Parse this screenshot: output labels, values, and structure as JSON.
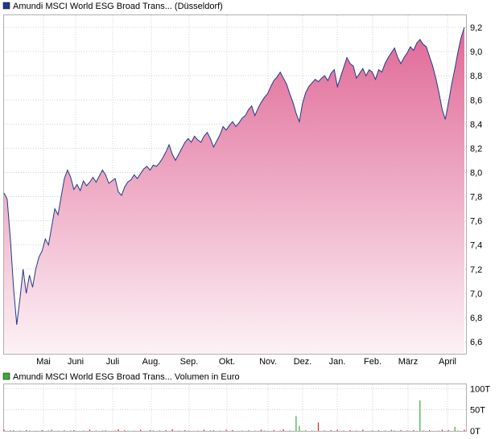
{
  "chart_data": [
    {
      "type": "area",
      "legend": "Amundi MSCI World ESG Broad Trans... (Düsseldorf)",
      "legend_color": "#1f3a8a",
      "line_color": "#1f3a8a",
      "fill_top_color": "#e06896",
      "fill_bottom_color": "#fdf2f6",
      "ylim": [
        6.5,
        9.3
      ],
      "yticks": [
        "6,6",
        "6,8",
        "7,0",
        "7,2",
        "7,4",
        "7,6",
        "7,8",
        "8,0",
        "8,2",
        "8,4",
        "8,6",
        "8,8",
        "9,0",
        "9,2"
      ],
      "ytick_values": [
        6.6,
        6.8,
        7.0,
        7.2,
        7.4,
        7.6,
        7.8,
        8.0,
        8.2,
        8.4,
        8.6,
        8.8,
        9.0,
        9.2
      ],
      "xticks": [
        "Mai",
        "Juni",
        "Juli",
        "Aug.",
        "Sep.",
        "Okt.",
        "Nov.",
        "Dez.",
        "Jan.",
        "Feb.",
        "März",
        "April"
      ],
      "grid": true,
      "series": [
        {
          "values": [
            7.83,
            7.78,
            7.45,
            7.05,
            6.74,
            6.95,
            7.2,
            7.0,
            7.15,
            7.05,
            7.2,
            7.3,
            7.35,
            7.45,
            7.4,
            7.55,
            7.7,
            7.65,
            7.8,
            7.95,
            8.02,
            7.96,
            7.86,
            7.9,
            7.85,
            7.93,
            7.89,
            7.92,
            7.96,
            7.92,
            7.97,
            8.02,
            7.98,
            7.91,
            7.93,
            7.95,
            7.84,
            7.81,
            7.88,
            7.92,
            7.94,
            7.98,
            7.95,
            7.99,
            8.03,
            8.05,
            8.02,
            8.06,
            8.05,
            8.08,
            8.12,
            8.17,
            8.23,
            8.15,
            8.1,
            8.15,
            8.2,
            8.25,
            8.28,
            8.25,
            8.3,
            8.27,
            8.25,
            8.3,
            8.33,
            8.28,
            8.21,
            8.26,
            8.31,
            8.38,
            8.35,
            8.39,
            8.42,
            8.38,
            8.41,
            8.45,
            8.47,
            8.52,
            8.55,
            8.47,
            8.53,
            8.58,
            8.62,
            8.65,
            8.71,
            8.76,
            8.79,
            8.83,
            8.78,
            8.73,
            8.65,
            8.58,
            8.49,
            8.42,
            8.57,
            8.66,
            8.71,
            8.74,
            8.77,
            8.75,
            8.78,
            8.8,
            8.76,
            8.82,
            8.85,
            8.71,
            8.79,
            8.87,
            8.95,
            8.9,
            8.88,
            8.78,
            8.82,
            8.86,
            8.8,
            8.85,
            8.83,
            8.77,
            8.85,
            8.83,
            8.9,
            8.95,
            8.99,
            9.03,
            8.95,
            8.9,
            8.95,
            8.99,
            9.04,
            9.01,
            9.07,
            9.1,
            9.06,
            9.04,
            8.96,
            8.88,
            8.78,
            8.66,
            8.52,
            8.44,
            8.58,
            8.73,
            8.86,
            9.0,
            9.12,
            9.2
          ]
        }
      ]
    },
    {
      "type": "bar",
      "legend": "Amundi MSCI World ESG Broad Trans... Volumen in Euro",
      "legend_color": "#3daa3d",
      "ylim": [
        0,
        110
      ],
      "yticks": [
        "0T",
        "50T",
        "100T"
      ],
      "ytick_values": [
        0,
        50,
        100
      ],
      "series": [
        {
          "values": [
            3,
            0,
            1,
            2,
            0,
            1,
            0,
            2,
            1,
            0,
            1,
            0,
            2,
            0,
            1,
            3,
            0,
            1,
            0,
            2,
            0,
            1,
            2,
            0,
            0,
            1,
            0,
            3,
            0,
            1,
            0,
            1,
            2,
            0,
            0,
            1,
            4,
            0,
            2,
            1,
            0,
            1,
            0,
            3,
            0,
            0,
            2,
            1,
            0,
            1,
            0,
            2,
            0,
            4,
            0,
            1,
            0,
            2,
            1,
            0,
            0,
            1,
            0,
            3,
            0,
            1,
            2,
            0,
            1,
            0,
            3,
            0,
            2,
            0,
            0,
            1,
            0,
            2,
            0,
            1,
            0,
            3,
            1,
            0,
            0,
            2,
            0,
            1,
            4,
            0,
            1,
            0,
            35,
            12,
            0,
            2,
            0,
            1,
            0,
            20,
            0,
            1,
            0,
            2,
            0,
            3,
            0,
            1,
            0,
            2,
            0,
            1,
            0,
            3,
            0,
            0,
            1,
            0,
            2,
            0,
            1,
            0,
            3,
            1,
            0,
            2,
            0,
            1,
            0,
            2,
            0,
            72,
            1,
            0,
            2,
            0,
            0,
            1,
            3,
            0,
            2,
            0,
            10,
            1,
            0,
            3
          ],
          "colors": [
            "#dd2222",
            "#3daa3d",
            "#dd2222",
            "#3daa3d",
            "#dd2222",
            "#3daa3d",
            "#3daa3d",
            "#dd2222",
            "#3daa3d",
            "#dd2222",
            "#3daa3d",
            "#dd2222",
            "#dd2222",
            "#3daa3d",
            "#dd2222",
            "#3daa3d",
            "#dd2222",
            "#3daa3d",
            "#dd2222",
            "#3daa3d",
            "#dd2222",
            "#3daa3d",
            "#dd2222",
            "#3daa3d",
            "#dd2222",
            "#3daa3d",
            "#dd2222",
            "#dd2222",
            "#3daa3d",
            "#dd2222",
            "#3daa3d",
            "#dd2222",
            "#3daa3d",
            "#dd2222",
            "#3daa3d",
            "#dd2222",
            "#dd2222",
            "#3daa3d",
            "#dd2222",
            "#3daa3d",
            "#dd2222",
            "#3daa3d",
            "#dd2222",
            "#dd2222",
            "#3daa3d",
            "#dd2222",
            "#3daa3d",
            "#dd2222",
            "#3daa3d",
            "#dd2222",
            "#3daa3d",
            "#dd2222",
            "#3daa3d",
            "#dd2222",
            "#3daa3d",
            "#dd2222",
            "#3daa3d",
            "#dd2222",
            "#3daa3d",
            "#dd2222",
            "#3daa3d",
            "#dd2222",
            "#3daa3d",
            "#dd2222",
            "#3daa3d",
            "#dd2222",
            "#3daa3d",
            "#dd2222",
            "#3daa3d",
            "#dd2222",
            "#dd2222",
            "#3daa3d",
            "#dd2222",
            "#3daa3d",
            "#dd2222",
            "#3daa3d",
            "#dd2222",
            "#3daa3d",
            "#dd2222",
            "#3daa3d",
            "#dd2222",
            "#dd2222",
            "#3daa3d",
            "#dd2222",
            "#3daa3d",
            "#dd2222",
            "#3daa3d",
            "#dd2222",
            "#dd2222",
            "#3daa3d",
            "#dd2222",
            "#3daa3d",
            "#3daa3d",
            "#3daa3d",
            "#dd2222",
            "#3daa3d",
            "#dd2222",
            "#3daa3d",
            "#dd2222",
            "#dd2222",
            "#3daa3d",
            "#dd2222",
            "#3daa3d",
            "#dd2222",
            "#3daa3d",
            "#dd2222",
            "#3daa3d",
            "#dd2222",
            "#3daa3d",
            "#dd2222",
            "#3daa3d",
            "#dd2222",
            "#3daa3d",
            "#dd2222",
            "#3daa3d",
            "#dd2222",
            "#3daa3d",
            "#dd2222",
            "#3daa3d",
            "#dd2222",
            "#3daa3d",
            "#dd2222",
            "#3daa3d",
            "#dd2222",
            "#3daa3d",
            "#dd2222",
            "#3daa3d",
            "#dd2222",
            "#3daa3d",
            "#dd2222",
            "#3daa3d",
            "#3daa3d",
            "#dd2222",
            "#3daa3d",
            "#dd2222",
            "#3daa3d",
            "#dd2222",
            "#3daa3d",
            "#dd2222",
            "#3daa3d",
            "#dd2222",
            "#3daa3d",
            "#3daa3d",
            "#dd2222",
            "#3daa3d",
            "#dd2222"
          ]
        }
      ]
    }
  ]
}
